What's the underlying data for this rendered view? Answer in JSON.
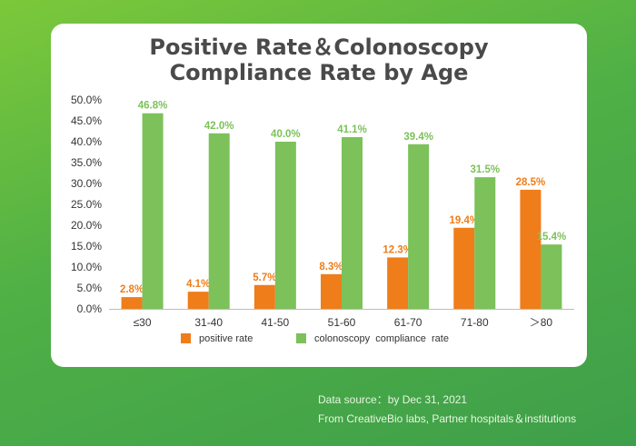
{
  "chart_data": {
    "type": "bar",
    "title_line1": "Positive Rate＆Colonoscopy",
    "title_line2": "Compliance Rate by Age",
    "categories": [
      "≤30",
      "31-40",
      "41-50",
      "51-60",
      "61-70",
      "71-80",
      "＞80"
    ],
    "series": [
      {
        "name": "positive rate",
        "color": "#ef7d1a",
        "values": [
          2.8,
          4.1,
          5.7,
          8.3,
          12.3,
          19.4,
          28.5
        ]
      },
      {
        "name": "colonoscopy  compliance  rate",
        "color": "#7cc15a",
        "values": [
          46.8,
          42.0,
          40.0,
          41.1,
          39.4,
          31.5,
          15.4
        ]
      }
    ],
    "y_ticks": [
      "0.0%",
      "5.0%",
      "10.0%",
      "15.0%",
      "20.0%",
      "25.0%",
      "30.0%",
      "35.0%",
      "40.0%",
      "45.0%",
      "50.0%"
    ],
    "ylim": [
      0,
      50
    ],
    "unit": "%",
    "legend_position": "bottom"
  },
  "footer": {
    "source": "Data source：by Dec 31, 2021",
    "from": "From  CreativeBio labs, Partner hospitals＆institutions"
  }
}
